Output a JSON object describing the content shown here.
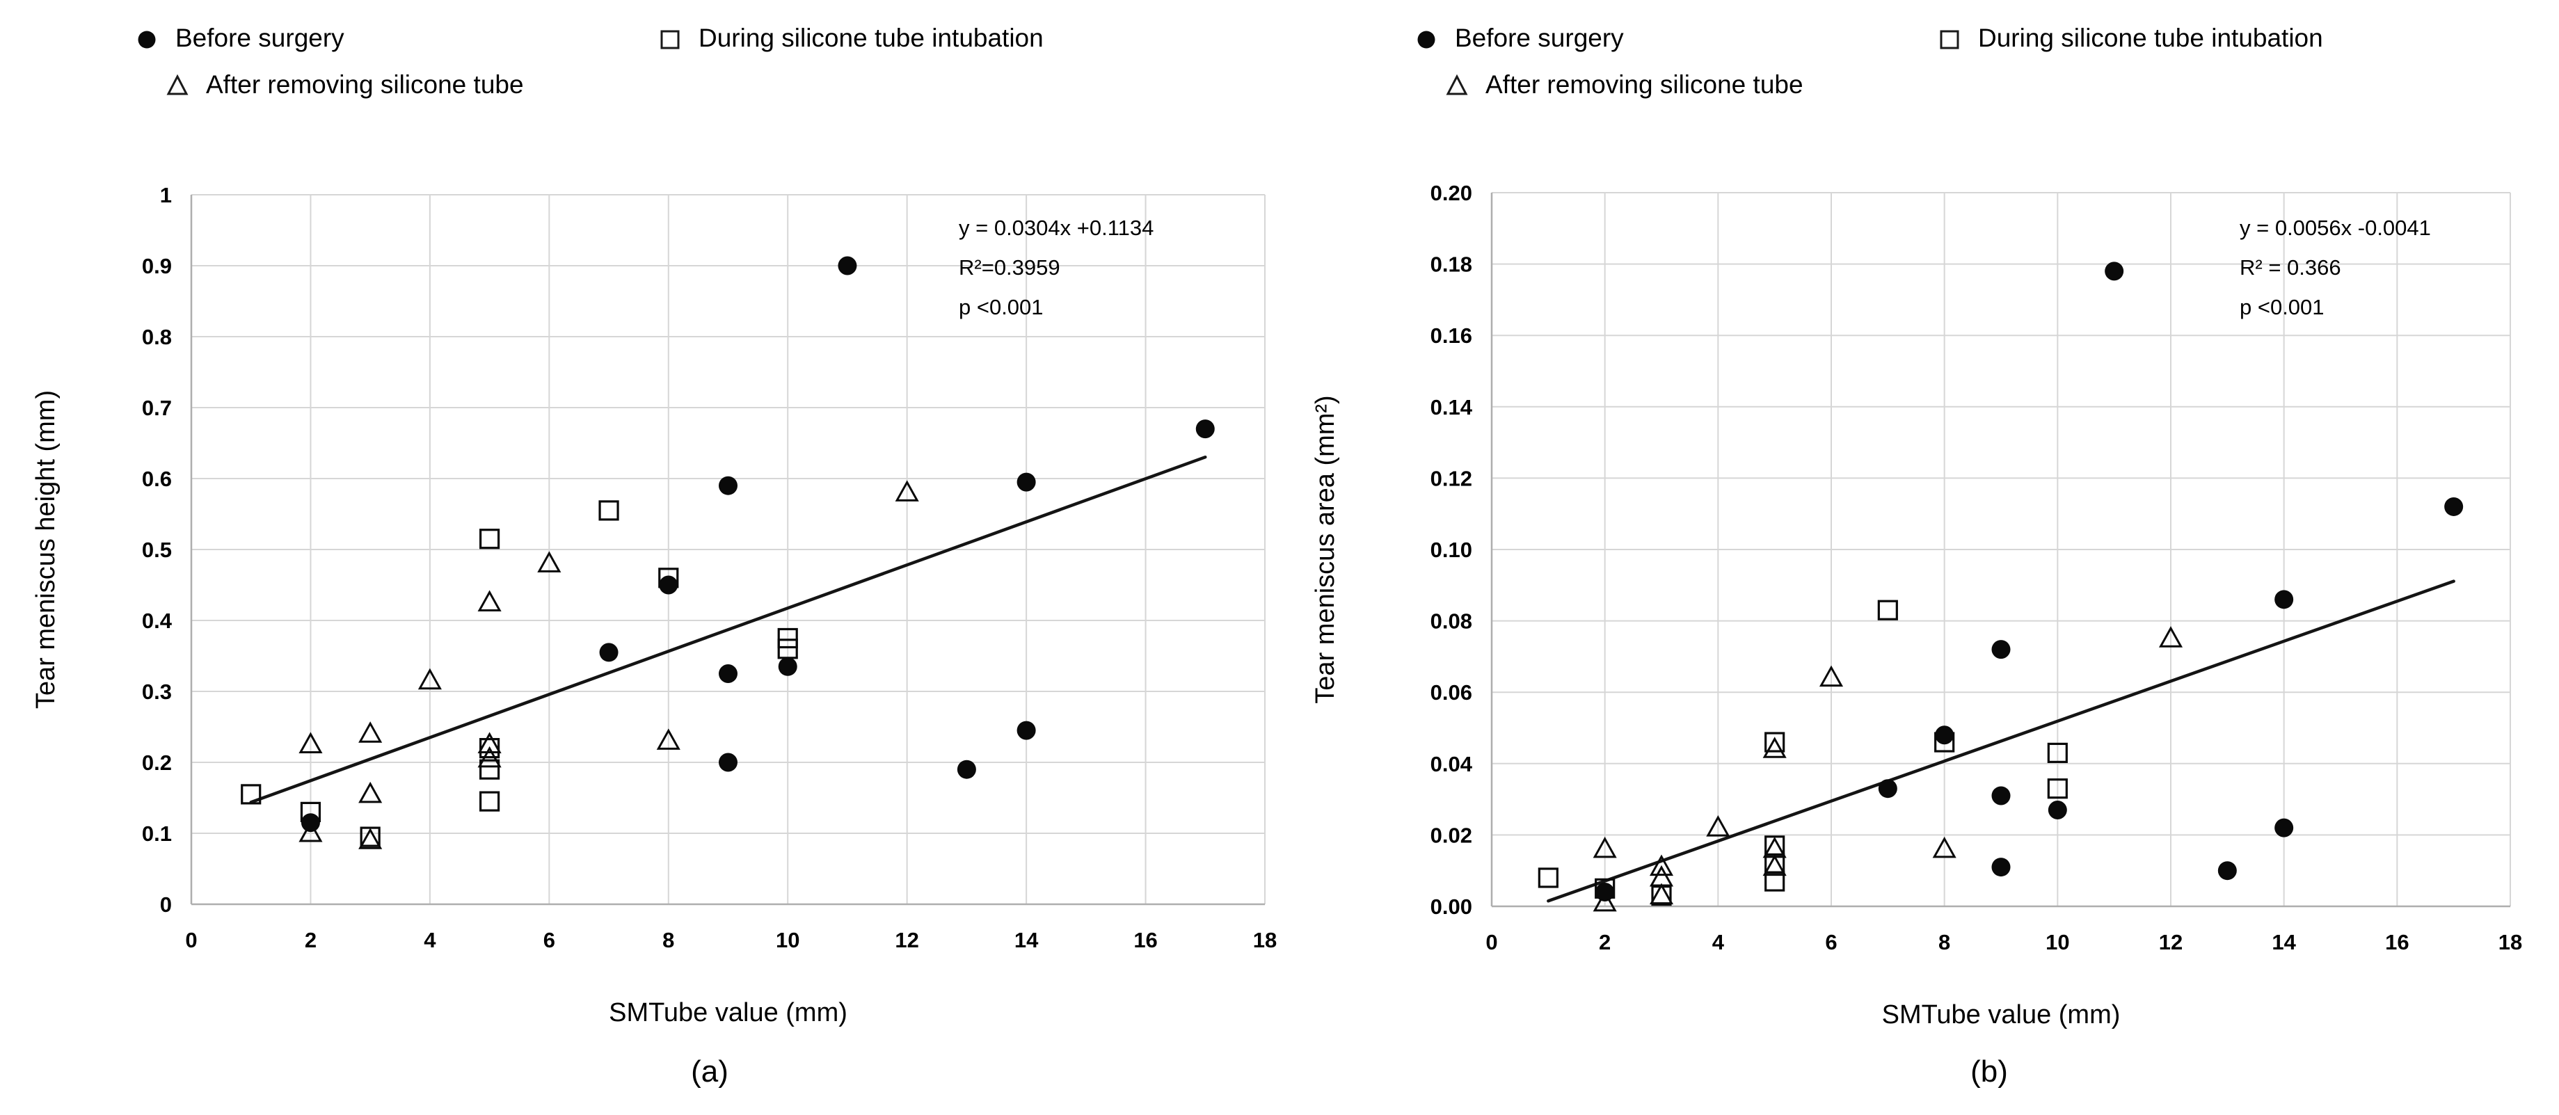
{
  "figure": {
    "background": "#ffffff",
    "colors": {
      "marker": "#0a0a0a",
      "trendline": "#141414",
      "gridline": "#d6d6d6",
      "axis_line": "#aeaeae",
      "text": "#000000"
    }
  },
  "chart_data": [
    {
      "type": "scatter",
      "caption": "(a)",
      "xlabel": "SMTube value (mm)",
      "ylabel": "Tear meniscus height (mm)",
      "xlim": [
        0,
        18
      ],
      "ylim": [
        0,
        1
      ],
      "x_ticks": [
        "0",
        "2",
        "4",
        "6",
        "8",
        "10",
        "12",
        "14",
        "16",
        "18"
      ],
      "y_ticks": [
        "0",
        "0.1",
        "0.2",
        "0.3",
        "0.4",
        "0.5",
        "0.6",
        "0.7",
        "0.8",
        "0.9",
        "1"
      ],
      "grid": true,
      "legend_position": "top-left",
      "annotation": {
        "lines": [
          "y = 0.0304x +0.1134",
          "R²=0.3959",
          "p <0.001"
        ]
      },
      "trendline": {
        "slope": 0.0304,
        "intercept": 0.1134,
        "x_start": 1,
        "x_end": 17
      },
      "series": [
        {
          "name": "Before surgery",
          "marker": "filled-circle",
          "points": [
            [
              2,
              0.115
            ],
            [
              7,
              0.355
            ],
            [
              8,
              0.45
            ],
            [
              9,
              0.59
            ],
            [
              9,
              0.325
            ],
            [
              9,
              0.2
            ],
            [
              10,
              0.335
            ],
            [
              11,
              0.9
            ],
            [
              13,
              0.19
            ],
            [
              14,
              0.595
            ],
            [
              14,
              0.245
            ],
            [
              17,
              0.67
            ]
          ]
        },
        {
          "name": "During silicone tube intubation",
          "marker": "open-square",
          "points": [
            [
              1,
              0.155
            ],
            [
              2,
              0.13
            ],
            [
              3,
              0.095
            ],
            [
              5,
              0.515
            ],
            [
              5,
              0.22
            ],
            [
              5,
              0.19
            ],
            [
              5,
              0.145
            ],
            [
              7,
              0.555
            ],
            [
              8,
              0.46
            ],
            [
              10,
              0.375
            ],
            [
              10,
              0.36
            ]
          ]
        },
        {
          "name": "After removing silicone tube",
          "marker": "open-triangle",
          "points": [
            [
              2,
              0.225
            ],
            [
              2,
              0.1
            ],
            [
              3,
              0.24
            ],
            [
              3,
              0.155
            ],
            [
              3,
              0.09
            ],
            [
              4,
              0.315
            ],
            [
              5,
              0.425
            ],
            [
              5,
              0.225
            ],
            [
              5,
              0.205
            ],
            [
              6,
              0.48
            ],
            [
              8,
              0.23
            ],
            [
              12,
              0.58
            ]
          ]
        }
      ]
    },
    {
      "type": "scatter",
      "caption": "(b)",
      "xlabel": "SMTube value (mm)",
      "ylabel": "Tear meniscus area (mm²)",
      "xlim": [
        0,
        18
      ],
      "ylim": [
        0,
        0.2
      ],
      "x_ticks": [
        "0",
        "2",
        "4",
        "6",
        "8",
        "10",
        "12",
        "14",
        "16",
        "18"
      ],
      "y_ticks": [
        "0.00",
        "0.02",
        "0.04",
        "0.06",
        "0.08",
        "0.10",
        "0.12",
        "0.14",
        "0.16",
        "0.18",
        "0.20"
      ],
      "grid": true,
      "legend_position": "top-left",
      "annotation": {
        "lines": [
          "y = 0.0056x -0.0041",
          "R² = 0.366",
          "p <0.001"
        ]
      },
      "trendline": {
        "slope": 0.0056,
        "intercept": -0.0041,
        "x_start": 1,
        "x_end": 17
      },
      "series": [
        {
          "name": "Before surgery",
          "marker": "filled-circle",
          "points": [
            [
              2,
              0.004
            ],
            [
              7,
              0.033
            ],
            [
              8,
              0.048
            ],
            [
              9,
              0.072
            ],
            [
              9,
              0.031
            ],
            [
              9,
              0.011
            ],
            [
              10,
              0.027
            ],
            [
              11,
              0.178
            ],
            [
              13,
              0.01
            ],
            [
              14,
              0.086
            ],
            [
              14,
              0.022
            ],
            [
              17,
              0.112
            ]
          ]
        },
        {
          "name": "During silicone tube intubation",
          "marker": "open-square",
          "points": [
            [
              1,
              0.008
            ],
            [
              2,
              0.005
            ],
            [
              3,
              0.003
            ],
            [
              5,
              0.046
            ],
            [
              5,
              0.017
            ],
            [
              5,
              0.012
            ],
            [
              5,
              0.007
            ],
            [
              7,
              0.083
            ],
            [
              8,
              0.046
            ],
            [
              10,
              0.043
            ],
            [
              10,
              0.033
            ]
          ]
        },
        {
          "name": "After removing silicone tube",
          "marker": "open-triangle",
          "points": [
            [
              2,
              0.016
            ],
            [
              2,
              0.001
            ],
            [
              3,
              0.011
            ],
            [
              3,
              0.008
            ],
            [
              3,
              0.003
            ],
            [
              4,
              0.022
            ],
            [
              5,
              0.044
            ],
            [
              5,
              0.016
            ],
            [
              5,
              0.011
            ],
            [
              6,
              0.064
            ],
            [
              8,
              0.016
            ],
            [
              12,
              0.075
            ]
          ]
        }
      ]
    }
  ]
}
